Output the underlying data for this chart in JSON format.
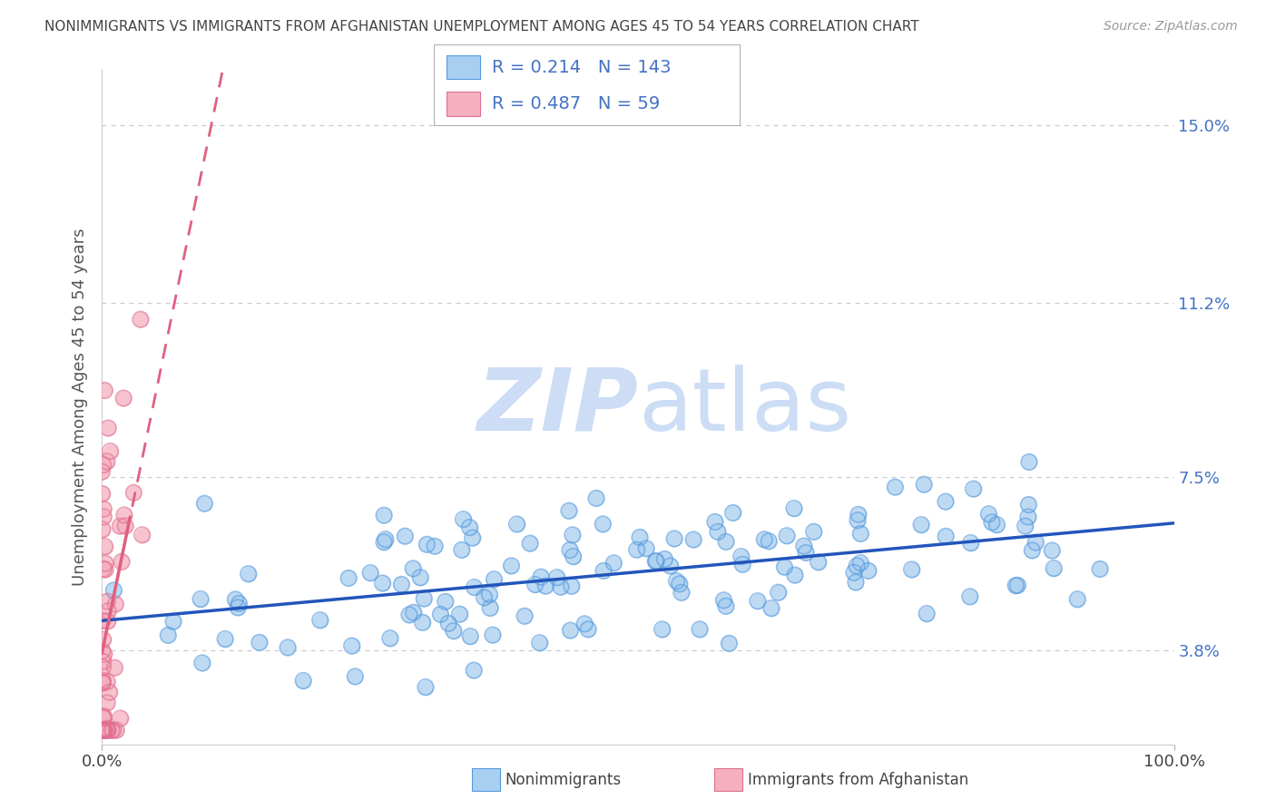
{
  "title": "NONIMMIGRANTS VS IMMIGRANTS FROM AFGHANISTAN UNEMPLOYMENT AMONG AGES 45 TO 54 YEARS CORRELATION CHART",
  "source": "Source: ZipAtlas.com",
  "ylabel": "Unemployment Among Ages 45 to 54 years",
  "xlim": [
    0.0,
    1.0
  ],
  "ylim": [
    0.018,
    0.162
  ],
  "xticklabels": [
    "0.0%",
    "100.0%"
  ],
  "ytick_values": [
    0.038,
    0.075,
    0.112,
    0.15
  ],
  "ytick_labels": [
    "3.8%",
    "7.5%",
    "11.2%",
    "15.0%"
  ],
  "nonimm_R": 0.214,
  "nonimm_N": 143,
  "imm_R": 0.487,
  "imm_N": 59,
  "blue_scatter_color": "#a8cef0",
  "pink_scatter_color": "#f4afc0",
  "blue_line_color": "#2255bb",
  "pink_line_color": "#e06080",
  "watermark_color": "#ccddf5",
  "grid_color": "#cccccc",
  "background_color": "#ffffff",
  "title_color": "#444444",
  "axis_label_color": "#555555",
  "tick_color_right": "#4472c4",
  "legend_label_blue": "Nonimmigrants",
  "legend_label_pink": "Immigrants from Afghanistan"
}
